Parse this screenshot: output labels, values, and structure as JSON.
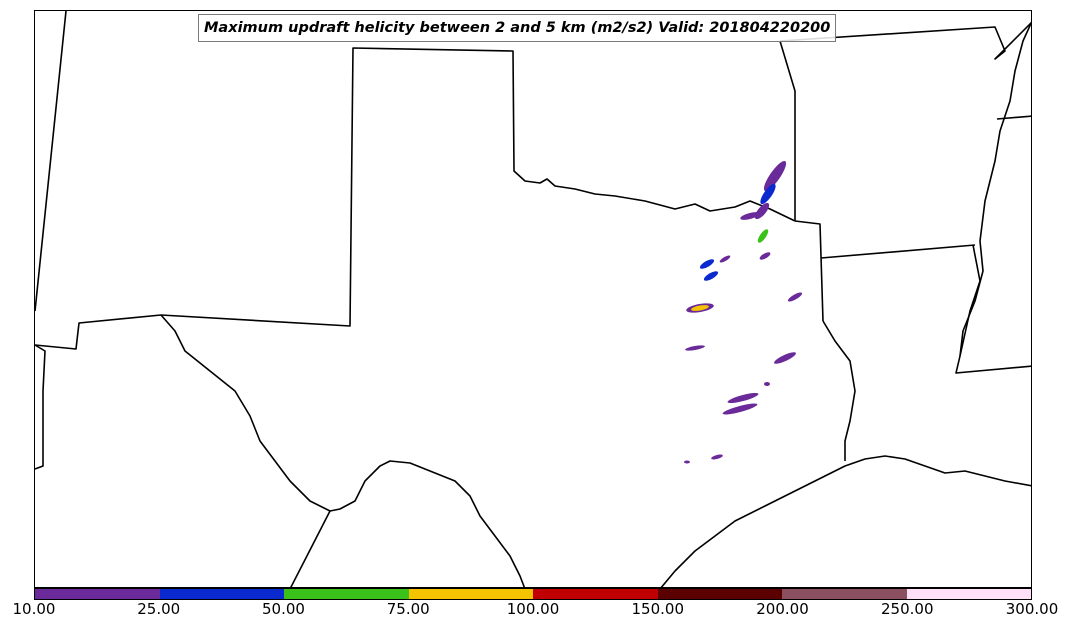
{
  "title": "Maximum updraft helicity between 2 and 5 km (m2/s2) Valid: 201804220200",
  "colorbar": {
    "ticks": [
      "10.00",
      "25.00",
      "50.00",
      "75.00",
      "100.00",
      "150.00",
      "200.00",
      "250.00",
      "300.00"
    ],
    "colors": [
      "#6a2a9a",
      "#0a2ad0",
      "#3ac21a",
      "#f5c400",
      "#c00000",
      "#5a0000",
      "#8a5060",
      "#ffe0f8"
    ]
  },
  "chart_data": {
    "type": "heatmap",
    "title": "Maximum updraft helicity between 2 and 5 km (m2/s2) Valid: 201804220200",
    "levels": [
      10,
      25,
      50,
      75,
      100,
      150,
      200,
      250,
      300
    ]
  }
}
